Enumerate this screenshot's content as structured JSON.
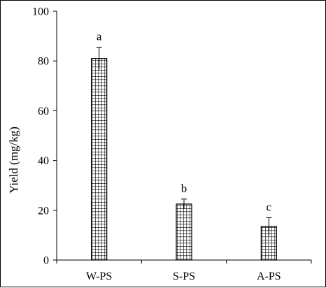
{
  "chart_data": {
    "type": "bar",
    "title": "",
    "xlabel": "",
    "ylabel": "Yield (mg/kg)",
    "categories": [
      "W-PS",
      "S-PS",
      "A-PS"
    ],
    "values": [
      81,
      22.5,
      13.5
    ],
    "error": [
      4.5,
      2,
      3.5
    ],
    "annotations": [
      "a",
      "b",
      "c"
    ],
    "ylim": [
      0,
      100
    ],
    "yticks": [
      0,
      20,
      40,
      60,
      80,
      100
    ],
    "grid": false,
    "legend": "none",
    "bar_fill": "checkered-grid",
    "colors": {
      "bar_line": "#000000",
      "bar_fill": "#ffffff"
    }
  }
}
